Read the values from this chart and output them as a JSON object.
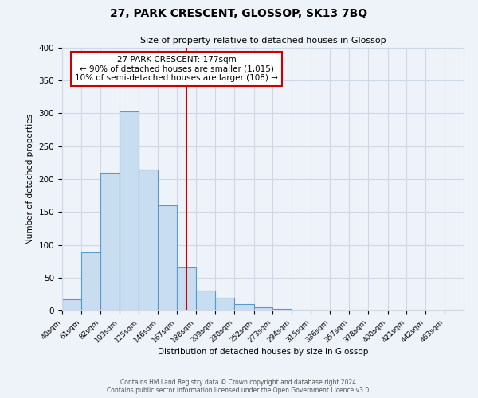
{
  "title": "27, PARK CRESCENT, GLOSSOP, SK13 7BQ",
  "subtitle": "Size of property relative to detached houses in Glossop",
  "xlabel": "Distribution of detached houses by size in Glossop",
  "ylabel": "Number of detached properties",
  "bin_labels": [
    "40sqm",
    "61sqm",
    "82sqm",
    "103sqm",
    "125sqm",
    "146sqm",
    "167sqm",
    "188sqm",
    "209sqm",
    "230sqm",
    "252sqm",
    "273sqm",
    "294sqm",
    "315sqm",
    "336sqm",
    "357sqm",
    "378sqm",
    "400sqm",
    "421sqm",
    "442sqm",
    "463sqm"
  ],
  "bar_values": [
    17,
    89,
    210,
    303,
    215,
    160,
    65,
    30,
    20,
    10,
    5,
    2,
    1,
    1,
    0,
    1,
    0,
    0,
    1,
    0,
    1
  ],
  "bin_edges": [
    40,
    61,
    82,
    103,
    125,
    146,
    167,
    188,
    209,
    230,
    252,
    273,
    294,
    315,
    336,
    357,
    378,
    400,
    421,
    442,
    463,
    484
  ],
  "vline_x": 177,
  "vline_color": "#cc0000",
  "bar_facecolor": "#c8ddf0",
  "bar_edgecolor": "#5a9ac8",
  "background_color": "#eef2f9",
  "grid_color": "#d0d8e8",
  "ylim": [
    0,
    400
  ],
  "yticks": [
    0,
    50,
    100,
    150,
    200,
    250,
    300,
    350,
    400
  ],
  "annotation_title": "27 PARK CRESCENT: 177sqm",
  "annotation_line1": "← 90% of detached houses are smaller (1,015)",
  "annotation_line2": "10% of semi-detached houses are larger (108) →",
  "annotation_box_color": "#ffffff",
  "annotation_box_edge": "#cc0000",
  "footer1": "Contains HM Land Registry data © Crown copyright and database right 2024.",
  "footer2": "Contains public sector information licensed under the Open Government Licence v3.0."
}
